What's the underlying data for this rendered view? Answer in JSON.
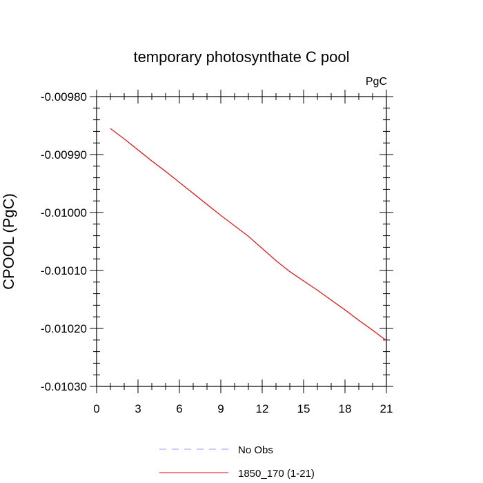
{
  "chart_data": {
    "type": "line",
    "title": "temporary photosynthate C pool",
    "units_label": "PgC",
    "ylabel": "CPOOL  (PgC)",
    "xlabel": "",
    "xlim": [
      0,
      21
    ],
    "ylim": [
      -0.0103,
      -0.0098
    ],
    "x_ticks": [
      0,
      3,
      6,
      9,
      12,
      15,
      18,
      21
    ],
    "x_tick_labels": [
      "0",
      "3",
      "6",
      "9",
      "12",
      "15",
      "18",
      "21"
    ],
    "y_ticks": [
      -0.0098,
      -0.0099,
      -0.01,
      -0.0101,
      -0.0102,
      -0.0103
    ],
    "y_tick_labels": [
      "-0.00980",
      "-0.00990",
      "-0.01000",
      "-0.01010",
      "-0.01020",
      "-0.01030"
    ],
    "series": [
      {
        "name": "1850_170 (1-21)",
        "color": "#ff0000",
        "dash": "solid",
        "x": [
          1,
          2,
          3,
          4,
          5,
          6,
          7,
          8,
          9,
          10,
          11,
          12,
          13,
          14,
          15,
          16,
          17,
          18,
          19,
          20,
          21
        ],
        "y": [
          -0.009855,
          -0.009873,
          -0.009892,
          -0.009911,
          -0.009929,
          -0.009948,
          -0.009967,
          -0.009986,
          -0.010005,
          -0.010023,
          -0.010041,
          -0.010062,
          -0.010083,
          -0.010102,
          -0.010118,
          -0.010134,
          -0.010151,
          -0.010168,
          -0.010186,
          -0.010203,
          -0.010221
        ]
      }
    ],
    "legend": {
      "placement": "bottom-center",
      "entries": [
        {
          "label": "No Obs",
          "color": "#9999ff",
          "dash": "dashed"
        },
        {
          "label": "1850_170 (1-21)",
          "color": "#ff0000",
          "dash": "solid"
        }
      ]
    }
  }
}
